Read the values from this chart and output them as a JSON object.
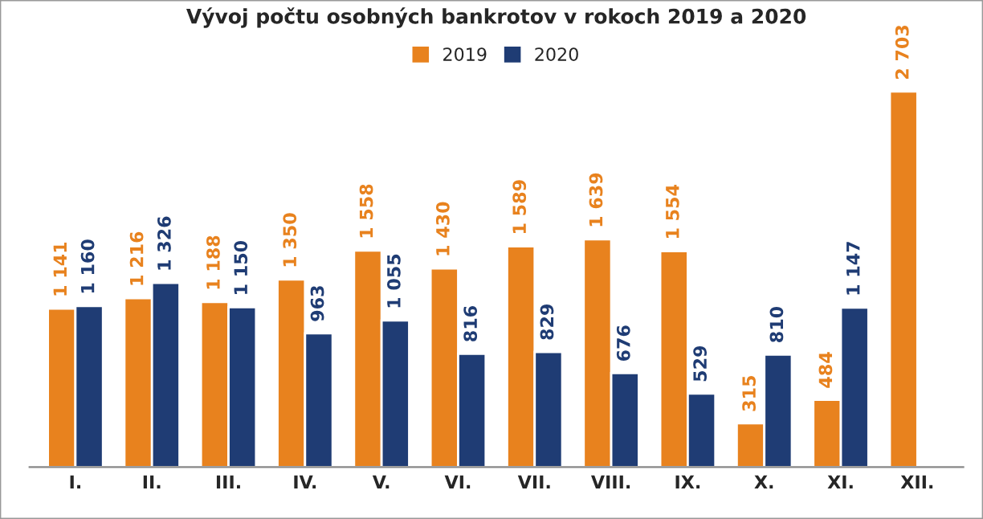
{
  "chart_data": {
    "type": "bar",
    "title": "Vývoj počtu osobných bankrotov v rokoch 2019 a 2020",
    "categories": [
      "I.",
      "II.",
      "III.",
      "IV.",
      "V.",
      "VI.",
      "VII.",
      "VIII.",
      "IX.",
      "X.",
      "XI.",
      "XII."
    ],
    "series": [
      {
        "name": "2019",
        "color": "#e8821e",
        "values": [
          1141,
          1216,
          1188,
          1350,
          1558,
          1430,
          1589,
          1639,
          1554,
          315,
          484,
          2703
        ],
        "value_labels": [
          "1 141",
          "1 216",
          "1 188",
          "1 350",
          "1 558",
          "1 430",
          "1 589",
          "1 639",
          "1 554",
          "315",
          "484",
          "2 703"
        ]
      },
      {
        "name": "2020",
        "color": "#1f3c74",
        "values": [
          1160,
          1326,
          1150,
          963,
          1055,
          816,
          829,
          676,
          529,
          810,
          1147,
          null
        ],
        "value_labels": [
          "1 160",
          "1 326",
          "1 150",
          "963",
          "1 055",
          "816",
          "829",
          "676",
          "529",
          "810",
          "1 147",
          null
        ]
      }
    ],
    "legend": "top",
    "grid": false
  }
}
